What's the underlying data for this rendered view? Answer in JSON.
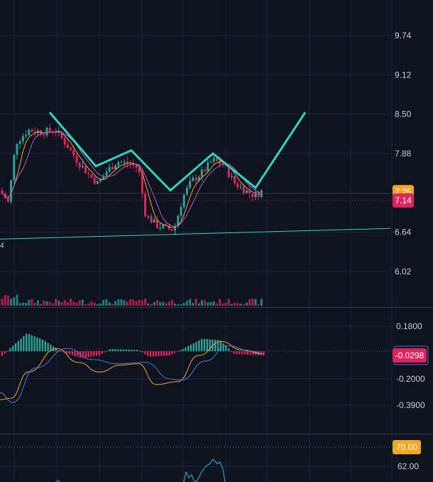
{
  "chart_data": [
    {
      "panel": "price",
      "type": "candlestick",
      "y_ticks": [
        "9.74",
        "9.12",
        "8.50",
        "7.88",
        "6.64",
        "6.02"
      ],
      "ylim": [
        5.75,
        10.0
      ],
      "current_price": {
        "label": "7.14",
        "value": 7.14,
        "color": "#e0245e"
      },
      "prev_close": {
        "label": "7.25",
        "value": 7.25,
        "color": "#f5a623"
      },
      "trendline_left_label": "4",
      "up_color": "#26a69a",
      "down_color": "#e0245e",
      "pattern_color": "#2fd3bf",
      "pattern_points": [
        [
          0.7,
          8.53
        ],
        [
          1.35,
          7.68
        ],
        [
          1.85,
          7.93
        ],
        [
          2.4,
          7.3
        ],
        [
          3.0,
          7.88
        ],
        [
          3.6,
          7.34
        ],
        [
          4.3,
          8.53
        ]
      ],
      "trendline": [
        [
          -0.05,
          6.53
        ],
        [
          5.5,
          6.7
        ]
      ],
      "ma_fast_color": "#f0a33a",
      "ma_slow_color": "#b05bd6"
    },
    {
      "panel": "macd",
      "type": "histogram+line",
      "y_ticks": [
        "0.1800",
        "-0.2000",
        "-0.3900"
      ],
      "ylim": [
        -0.52,
        0.4
      ],
      "current_value": {
        "label": "-0.0298",
        "value": -0.0298,
        "color": "#e0245e"
      },
      "macd_color": "#f0a33a",
      "signal_color": "#4a7bd8"
    },
    {
      "panel": "rsi",
      "type": "line",
      "y_ticks": [
        "62.00"
      ],
      "overbought": {
        "label": "70.00",
        "value": 70,
        "color": "#f5a623"
      },
      "ylim": [
        58,
        72
      ],
      "line_color": "#29b6f6"
    }
  ]
}
